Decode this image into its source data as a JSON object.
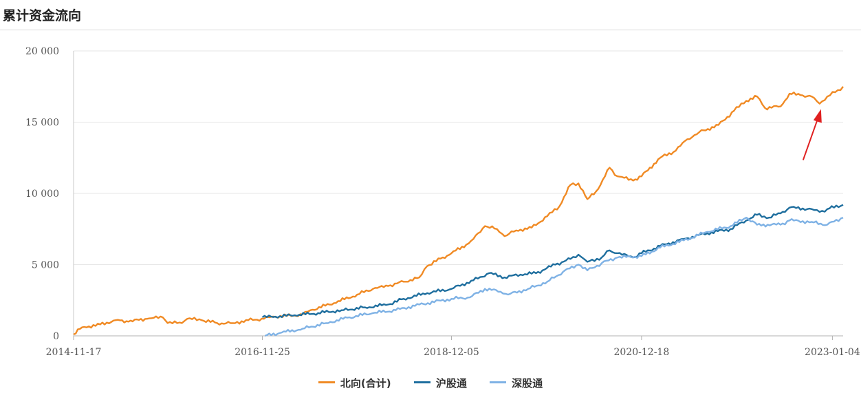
{
  "page": {
    "title": "累计资金流向"
  },
  "chart_data": {
    "type": "line",
    "title": "累计资金流向",
    "ylim": [
      0,
      20000
    ],
    "yticks": [
      0,
      5000,
      10000,
      15000,
      20000
    ],
    "ytick_labels": [
      "0",
      "5 000",
      "10 000",
      "15 000",
      "20 000"
    ],
    "xlim": [
      "2014-11-17",
      "2023-02-15"
    ],
    "xticks": [
      "2014-11-17",
      "2016-11-25",
      "2018-12-05",
      "2020-12-18",
      "2023-01-04"
    ],
    "grid": "horizontal",
    "legend_position": "bottom",
    "annotation": "red arrow pointing to the dip near late 2022",
    "series": [
      {
        "name": "北向(合计)",
        "color": "#f08a24",
        "points": [
          [
            "2014-11-17",
            100
          ],
          [
            "2014-12-20",
            600
          ],
          [
            "2015-03-01",
            800
          ],
          [
            "2015-05-01",
            1100
          ],
          [
            "2015-06-20",
            1000
          ],
          [
            "2015-09-01",
            1200
          ],
          [
            "2015-11-01",
            1300
          ],
          [
            "2015-11-20",
            900
          ],
          [
            "2016-01-15",
            900
          ],
          [
            "2016-02-05",
            1200
          ],
          [
            "2016-04-01",
            1100
          ],
          [
            "2016-06-01",
            900
          ],
          [
            "2016-08-01",
            900
          ],
          [
            "2016-10-01",
            1100
          ],
          [
            "2016-12-01",
            1200
          ],
          [
            "2017-01-01",
            1350
          ],
          [
            "2017-03-01",
            1400
          ],
          [
            "2017-05-01",
            1500
          ],
          [
            "2017-06-01",
            1800
          ],
          [
            "2017-09-01",
            2300
          ],
          [
            "2017-12-01",
            2900
          ],
          [
            "2018-02-01",
            3300
          ],
          [
            "2018-04-01",
            3500
          ],
          [
            "2018-06-01",
            3800
          ],
          [
            "2018-08-01",
            4100
          ],
          [
            "2018-09-01",
            4900
          ],
          [
            "2018-11-01",
            5500
          ],
          [
            "2018-12-05",
            5800
          ],
          [
            "2019-02-01",
            6400
          ],
          [
            "2019-03-01",
            6800
          ],
          [
            "2019-04-15",
            7700
          ],
          [
            "2019-06-01",
            7500
          ],
          [
            "2019-07-01",
            7000
          ],
          [
            "2019-08-15",
            7400
          ],
          [
            "2019-10-15",
            7600
          ],
          [
            "2019-12-15",
            8400
          ],
          [
            "2020-02-01",
            9100
          ],
          [
            "2020-03-15",
            10600
          ],
          [
            "2020-04-15",
            10700
          ],
          [
            "2020-05-20",
            9600
          ],
          [
            "2020-07-01",
            10300
          ],
          [
            "2020-08-15",
            11800
          ],
          [
            "2020-09-15",
            11200
          ],
          [
            "2020-11-15",
            10900
          ],
          [
            "2020-12-18",
            11200
          ],
          [
            "2021-03-01",
            12500
          ],
          [
            "2021-05-01",
            13000
          ],
          [
            "2021-06-15",
            13800
          ],
          [
            "2021-08-01",
            14300
          ],
          [
            "2021-10-15",
            14800
          ],
          [
            "2021-12-15",
            15800
          ],
          [
            "2022-02-01",
            16500
          ],
          [
            "2022-03-15",
            16800
          ],
          [
            "2022-04-15",
            16000
          ],
          [
            "2022-06-15",
            16100
          ],
          [
            "2022-07-20",
            17000
          ],
          [
            "2022-09-01",
            16900
          ],
          [
            "2022-10-15",
            16800
          ],
          [
            "2022-11-15",
            16300
          ],
          [
            "2022-12-15",
            16800
          ],
          [
            "2023-01-15",
            17100
          ],
          [
            "2023-02-15",
            17500
          ]
        ]
      },
      {
        "name": "沪股通",
        "color": "#1e6e9e",
        "points": [
          [
            "2016-11-25",
            1300
          ],
          [
            "2017-01-15",
            1350
          ],
          [
            "2017-04-01",
            1450
          ],
          [
            "2017-07-01",
            1600
          ],
          [
            "2017-10-01",
            1800
          ],
          [
            "2018-01-01",
            2000
          ],
          [
            "2018-04-01",
            2200
          ],
          [
            "2018-06-01",
            2600
          ],
          [
            "2018-09-01",
            3000
          ],
          [
            "2018-12-05",
            3300
          ],
          [
            "2019-03-01",
            3900
          ],
          [
            "2019-05-01",
            4400
          ],
          [
            "2019-07-01",
            4100
          ],
          [
            "2019-09-01",
            4300
          ],
          [
            "2019-11-01",
            4400
          ],
          [
            "2020-01-15",
            5000
          ],
          [
            "2020-03-15",
            5400
          ],
          [
            "2020-04-15",
            5700
          ],
          [
            "2020-05-20",
            5200
          ],
          [
            "2020-07-15",
            5500
          ],
          [
            "2020-08-15",
            6000
          ],
          [
            "2020-09-15",
            5800
          ],
          [
            "2020-11-15",
            5500
          ],
          [
            "2020-12-18",
            5800
          ],
          [
            "2021-03-01",
            6300
          ],
          [
            "2021-06-01",
            6800
          ],
          [
            "2021-09-01",
            7200
          ],
          [
            "2021-12-01",
            7500
          ],
          [
            "2022-02-01",
            8100
          ],
          [
            "2022-03-15",
            8500
          ],
          [
            "2022-05-01",
            8300
          ],
          [
            "2022-06-15",
            8600
          ],
          [
            "2022-07-20",
            9000
          ],
          [
            "2022-10-15",
            8900
          ],
          [
            "2022-11-15",
            8700
          ],
          [
            "2022-12-15",
            8900
          ],
          [
            "2023-02-15",
            9200
          ]
        ]
      },
      {
        "name": "深股通",
        "color": "#7fb2e5",
        "points": [
          [
            "2016-12-05",
            0
          ],
          [
            "2017-02-01",
            200
          ],
          [
            "2017-05-01",
            500
          ],
          [
            "2017-08-01",
            900
          ],
          [
            "2017-11-01",
            1300
          ],
          [
            "2018-02-01",
            1600
          ],
          [
            "2018-05-01",
            1800
          ],
          [
            "2018-08-01",
            2200
          ],
          [
            "2018-12-05",
            2600
          ],
          [
            "2019-02-15",
            2700
          ],
          [
            "2019-04-15",
            3300
          ],
          [
            "2019-06-15",
            3100
          ],
          [
            "2019-07-15",
            2900
          ],
          [
            "2019-10-01",
            3300
          ],
          [
            "2019-12-15",
            3800
          ],
          [
            "2020-02-15",
            4500
          ],
          [
            "2020-04-15",
            5000
          ],
          [
            "2020-05-20",
            4600
          ],
          [
            "2020-07-15",
            5100
          ],
          [
            "2020-09-15",
            5500
          ],
          [
            "2020-12-18",
            5600
          ],
          [
            "2021-03-01",
            6200
          ],
          [
            "2021-06-01",
            6700
          ],
          [
            "2021-09-01",
            7300
          ],
          [
            "2021-12-01",
            7700
          ],
          [
            "2022-02-01",
            8300
          ],
          [
            "2022-03-15",
            7800
          ],
          [
            "2022-06-15",
            7800
          ],
          [
            "2022-07-20",
            8100
          ],
          [
            "2022-10-15",
            8000
          ],
          [
            "2022-12-15",
            7800
          ],
          [
            "2023-02-15",
            8300
          ]
        ]
      }
    ]
  }
}
